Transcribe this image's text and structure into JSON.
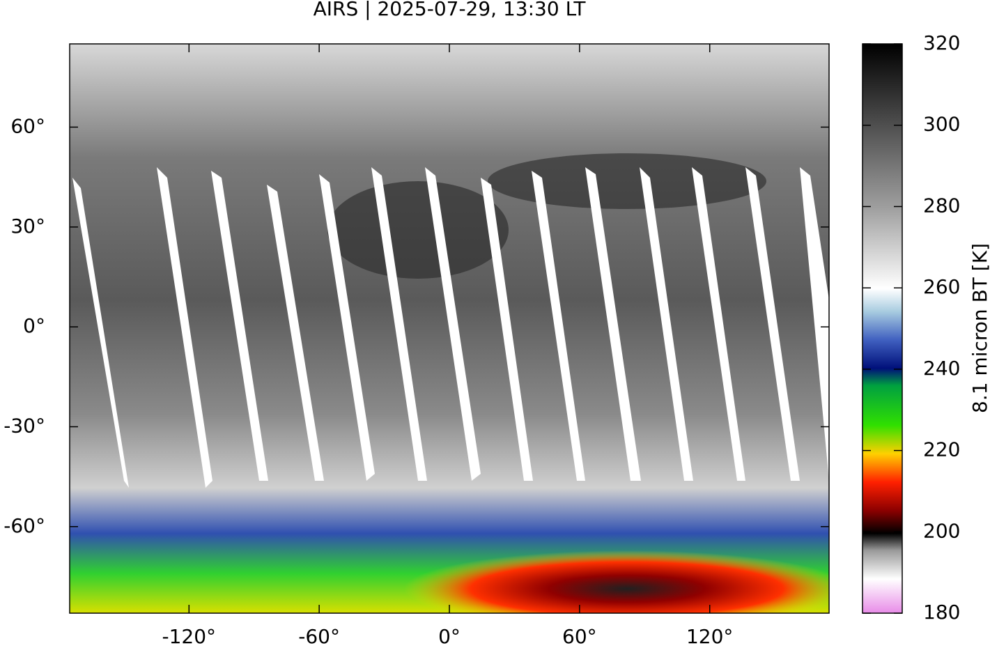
{
  "chart_data": {
    "type": "map",
    "title": "AIRS | 2025-07-29, 13:30 LT",
    "xlim": [
      -175,
      175
    ],
    "ylim": [
      -86,
      85
    ],
    "xticks": [
      {
        "value": -120,
        "label": "-120°"
      },
      {
        "value": -60,
        "label": "-60°"
      },
      {
        "value": 0,
        "label": "0°"
      },
      {
        "value": 60,
        "label": "60°"
      },
      {
        "value": 120,
        "label": "120°"
      }
    ],
    "yticks": [
      {
        "value": 60,
        "label": "60°"
      },
      {
        "value": 30,
        "label": "30°"
      },
      {
        "value": 0,
        "label": "0°"
      },
      {
        "value": -30,
        "label": "-30°"
      },
      {
        "value": -60,
        "label": "-60°"
      }
    ],
    "colorbar": {
      "label": "8.1 micron BT [K]",
      "lim": [
        180,
        320
      ],
      "ticks": [
        180,
        200,
        220,
        240,
        260,
        280,
        300,
        320
      ]
    }
  }
}
